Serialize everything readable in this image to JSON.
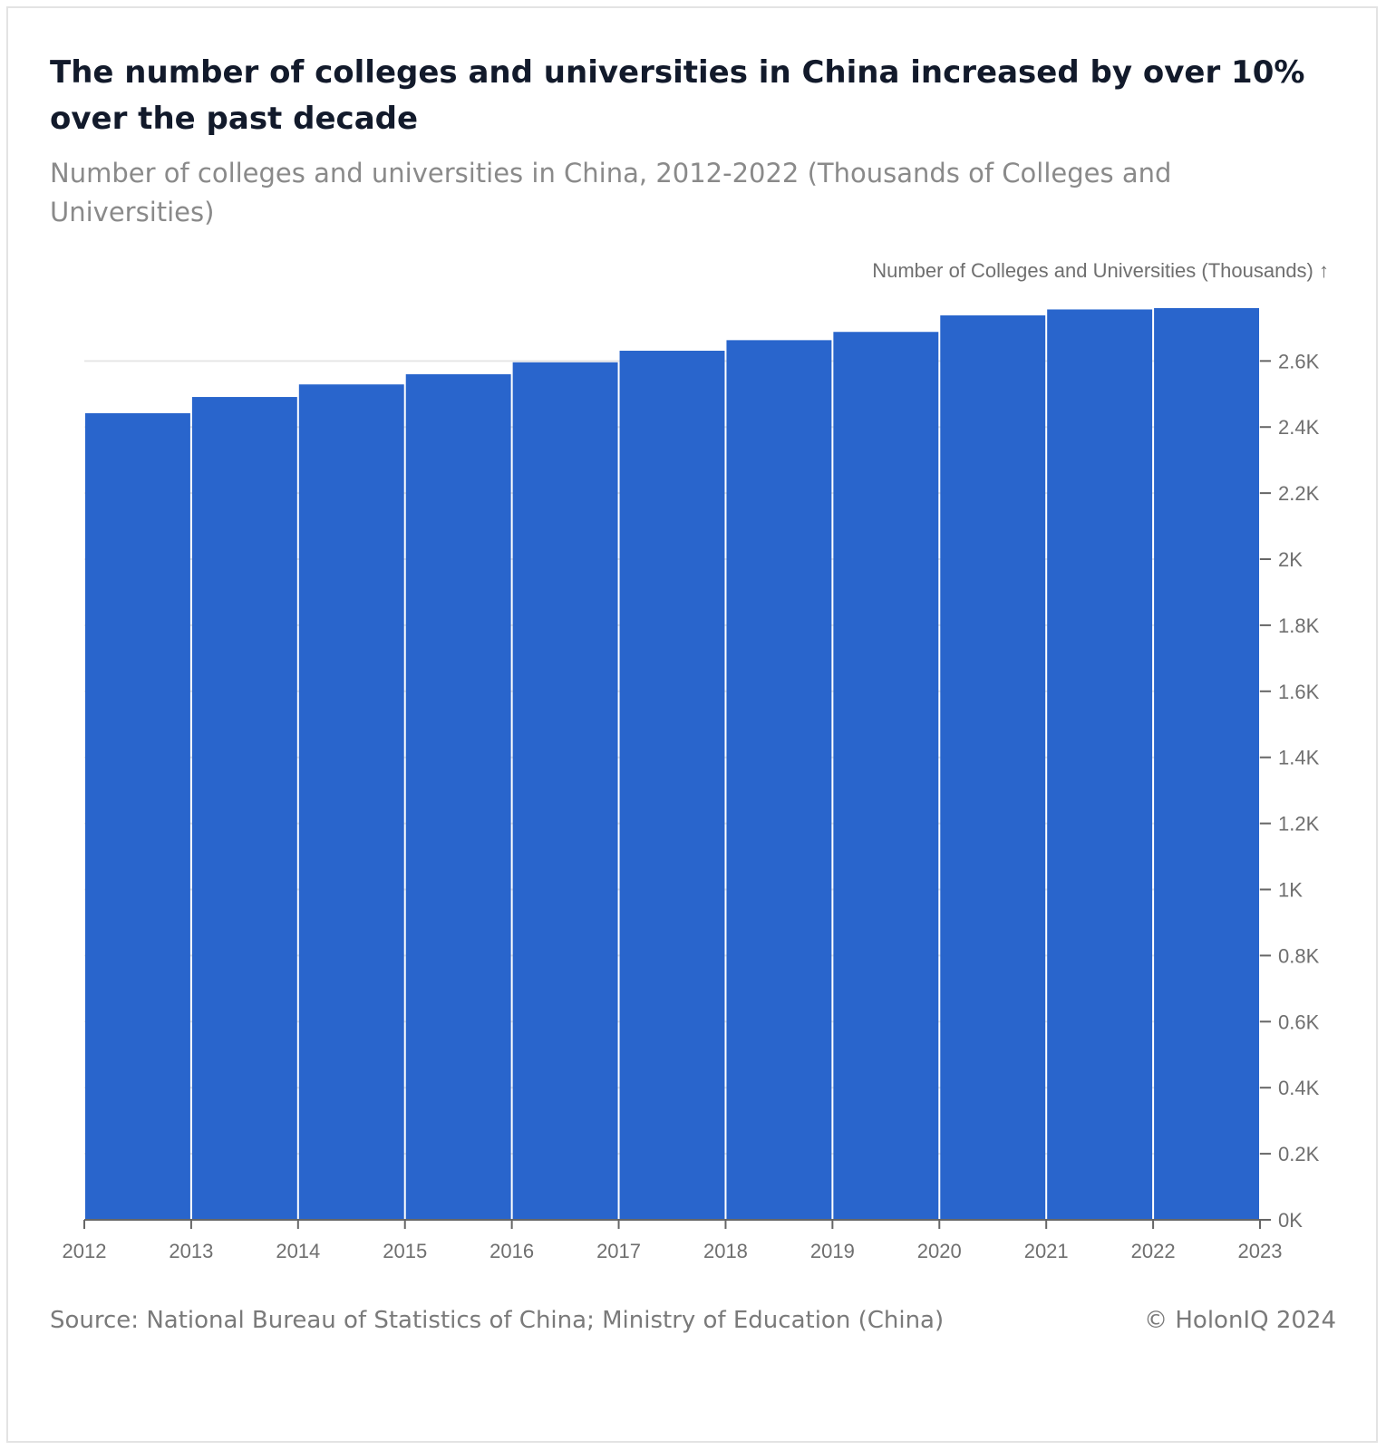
{
  "title": "The number of colleges and universities in China increased by over 10% over the past decade",
  "subtitle": "Number of colleges and universities in China, 2012-2022 (Thousands of Colleges and Universities)",
  "source": "Source: National Bureau of Statistics of China; Ministry of Education (China)",
  "copyright": "© HolonIQ 2024",
  "colors": {
    "bar": "#2965cc",
    "grid": "#e6e6e6",
    "axis": "#666666",
    "tick_text": "#6f6f6f"
  },
  "chart_data": {
    "type": "bar",
    "x_ticks": [
      "2012",
      "2013",
      "2014",
      "2015",
      "2016",
      "2017",
      "2018",
      "2019",
      "2020",
      "2021",
      "2022",
      "2023"
    ],
    "categories": [
      "2012",
      "2013",
      "2014",
      "2015",
      "2016",
      "2017",
      "2018",
      "2019",
      "2020",
      "2021",
      "2022"
    ],
    "values": [
      2.442,
      2.491,
      2.529,
      2.56,
      2.596,
      2.631,
      2.663,
      2.688,
      2.738,
      2.756,
      2.76
    ],
    "ylabel": "Number of Colleges and Universities (Thousands) ↑",
    "xlabel": "",
    "ylim": [
      0,
      2.76
    ],
    "y_ticks": [
      {
        "value": 0,
        "label": "0K"
      },
      {
        "value": 0.2,
        "label": "0.2K"
      },
      {
        "value": 0.4,
        "label": "0.4K"
      },
      {
        "value": 0.6,
        "label": "0.6K"
      },
      {
        "value": 0.8,
        "label": "0.8K"
      },
      {
        "value": 1.0,
        "label": "1K"
      },
      {
        "value": 1.2,
        "label": "1.2K"
      },
      {
        "value": 1.4,
        "label": "1.4K"
      },
      {
        "value": 1.6,
        "label": "1.6K"
      },
      {
        "value": 1.8,
        "label": "1.8K"
      },
      {
        "value": 2.0,
        "label": "2K"
      },
      {
        "value": 2.2,
        "label": "2.2K"
      },
      {
        "value": 2.4,
        "label": "2.4K"
      },
      {
        "value": 2.6,
        "label": "2.6K"
      }
    ],
    "y_axis_side": "right",
    "grid": true
  }
}
